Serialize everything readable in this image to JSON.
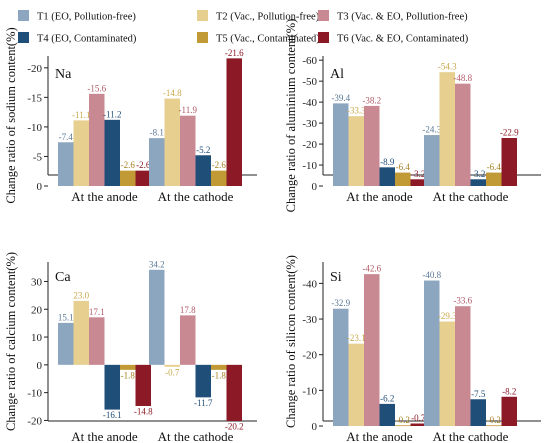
{
  "colors": [
    "#8da6bf",
    "#e6cf8f",
    "#c98993",
    "#1f4e79",
    "#c29a35",
    "#8b1a26"
  ],
  "legend": [
    "T1 (EO, Pollution-free)",
    "T2 (Vac., Pollution-free)",
    "T3 (Vac. & EO, Pollution-free)",
    "T4 (EO, Contaminated)",
    "T5 (Vac., Contaminated)",
    "T6 (Vac. & EO, Contaminated)"
  ],
  "chart_data": [
    {
      "type": "bar",
      "title": "Na",
      "ylabel": "Change ratio of sodium content(%)",
      "categories": [
        "At the anode",
        "At the cathode"
      ],
      "yticks": [
        -20,
        -15,
        -10,
        -5,
        0
      ],
      "ylim": [
        0,
        -22
      ],
      "reversed_axis": true,
      "series": [
        {
          "name": "T1 (EO, Pollution-free)",
          "values": [
            -7.4,
            -8.1
          ],
          "labels": [
            "-7.4",
            "-8.1"
          ]
        },
        {
          "name": "T2 (Vac., Pollution-free)",
          "values": [
            -11.1,
            -14.8
          ],
          "labels": [
            "-11.1",
            "-14.8"
          ]
        },
        {
          "name": "T3 (Vac. & EO, Pollution-free)",
          "values": [
            -15.6,
            -11.9
          ],
          "labels": [
            "-15.6",
            "-11.9"
          ]
        },
        {
          "name": "T4 (EO, Contaminated)",
          "values": [
            -11.2,
            -5.2
          ],
          "labels": [
            "-11.2",
            "-5.2"
          ]
        },
        {
          "name": "T5 (Vac., Contaminated)",
          "values": [
            -2.6,
            -2.6
          ],
          "labels": [
            "-2.6",
            "-2.6"
          ]
        },
        {
          "name": "T6 (Vac. & EO, Contaminated)",
          "values": [
            -2.6,
            -21.6
          ],
          "labels": [
            "-2.6",
            "-21.6"
          ]
        }
      ]
    },
    {
      "type": "bar",
      "title": "Al",
      "ylabel": "Change ratio of aluminium content(%)",
      "categories": [
        "At the anode",
        "At the cathode"
      ],
      "yticks": [
        -60,
        -50,
        -40,
        -30,
        -20,
        -10,
        0
      ],
      "ylim": [
        0,
        -62
      ],
      "reversed_axis": true,
      "series": [
        {
          "name": "T1 (EO, Pollution-free)",
          "values": [
            -39.4,
            -24.3
          ],
          "labels": [
            "-39.4",
            "-24.3"
          ]
        },
        {
          "name": "T2 (Vac., Pollution-free)",
          "values": [
            -33.3,
            -54.3
          ],
          "labels": [
            "-33.3",
            "-54.3"
          ]
        },
        {
          "name": "T3 (Vac. & EO, Pollution-free)",
          "values": [
            -38.2,
            -48.8
          ],
          "labels": [
            "-38.2",
            "-48.8"
          ]
        },
        {
          "name": "T4 (EO, Contaminated)",
          "values": [
            -8.9,
            -3.2
          ],
          "labels": [
            "-8.9",
            "-3.2"
          ]
        },
        {
          "name": "T5 (Vac., Contaminated)",
          "values": [
            -6.4,
            -6.4
          ],
          "labels": [
            "-6.4",
            "-6.4"
          ]
        },
        {
          "name": "T6 (Vac. & EO, Contaminated)",
          "values": [
            -3.2,
            -22.9
          ],
          "labels": [
            "-3.2",
            "-22.9"
          ]
        }
      ]
    },
    {
      "type": "bar",
      "title": "Ca",
      "ylabel": "Change ratio of calcium content(%)",
      "categories": [
        "At the anode",
        "At the cathode"
      ],
      "yticks": [
        30,
        20,
        10,
        0,
        -10,
        -20
      ],
      "ylim": [
        -22,
        37
      ],
      "reversed_axis": false,
      "series": [
        {
          "name": "T1 (EO, Pollution-free)",
          "values": [
            15.1,
            34.2
          ],
          "labels": [
            "15.1",
            "34.2"
          ]
        },
        {
          "name": "T2 (Vac., Pollution-free)",
          "values": [
            23.0,
            -0.7
          ],
          "labels": [
            "23.0",
            "-0.7"
          ]
        },
        {
          "name": "T3 (Vac. & EO, Pollution-free)",
          "values": [
            17.1,
            17.8
          ],
          "labels": [
            "17.1",
            "17.8"
          ]
        },
        {
          "name": "T4 (EO, Contaminated)",
          "values": [
            -16.1,
            -11.7
          ],
          "labels": [
            "-16.1",
            "-11.7"
          ]
        },
        {
          "name": "T5 (Vac., Contaminated)",
          "values": [
            -1.8,
            -1.8
          ],
          "labels": [
            "-1.8",
            "-1.8"
          ]
        },
        {
          "name": "T6 (Vac. & EO, Contaminated)",
          "values": [
            -14.8,
            -20.2
          ],
          "labels": [
            "-14.8",
            "-20.2"
          ]
        }
      ]
    },
    {
      "type": "bar",
      "title": "Si",
      "ylabel": "Change ratio of silicon content(%)",
      "categories": [
        "At the anode",
        "At the cathode"
      ],
      "yticks": [
        -40,
        -30,
        -20,
        -10,
        0
      ],
      "ylim": [
        0,
        -46
      ],
      "reversed_axis": true,
      "series": [
        {
          "name": "T1 (EO, Pollution-free)",
          "values": [
            -32.9,
            -40.8
          ],
          "labels": [
            "-32.9",
            "-40.8"
          ]
        },
        {
          "name": "T2 (Vac., Pollution-free)",
          "values": [
            -23.1,
            -29.3
          ],
          "labels": [
            "-23.1",
            "-29.3"
          ]
        },
        {
          "name": "T3 (Vac. & EO, Pollution-free)",
          "values": [
            -42.6,
            -33.6
          ],
          "labels": [
            "-42.6",
            "-33.6"
          ]
        },
        {
          "name": "T4 (EO, Contaminated)",
          "values": [
            -6.2,
            -7.5
          ],
          "labels": [
            "-6.2",
            "-7.5"
          ]
        },
        {
          "name": "T5 (Vac., Contaminated)",
          "values": [
            -0.2,
            -0.2
          ],
          "labels": [
            "-0.2",
            "-0.2"
          ]
        },
        {
          "name": "T6 (Vac. & EO, Contaminated)",
          "values": [
            -0.7,
            -8.2
          ],
          "labels": [
            "-0.7",
            "-8.2"
          ]
        }
      ]
    }
  ]
}
